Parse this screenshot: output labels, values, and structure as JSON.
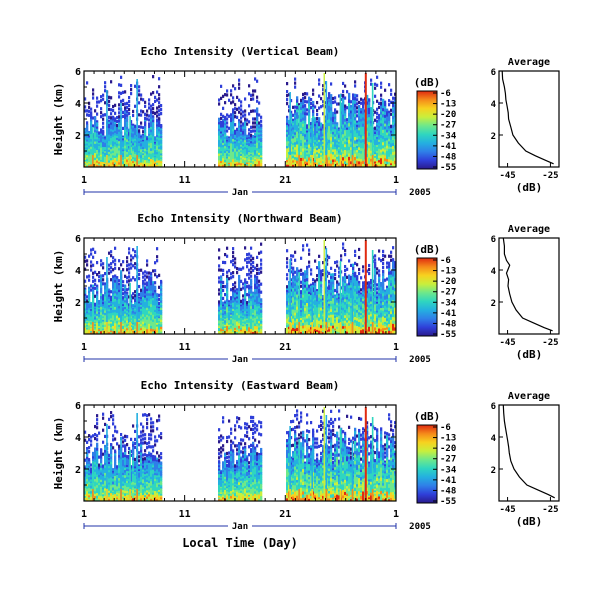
{
  "chart_data": [
    {
      "type": "heatmap",
      "title": "Echo Intensity (Vertical Beam)",
      "ylabel": "Height (km)",
      "ylim": [
        0,
        6
      ],
      "y_ticks": [
        "2",
        "4",
        "6"
      ],
      "x_ticks": [
        "1",
        "11",
        "21",
        "1"
      ],
      "period_label": "Jan",
      "year_label": "2005",
      "colorbar": {
        "unit": "(dB)",
        "ticks": [
          "-6",
          "-13",
          "-20",
          "-27",
          "-34",
          "-41",
          "-48",
          "-55"
        ]
      },
      "average": {
        "title": "Average",
        "xlabel": "(dB)",
        "x_ticks": [
          "-45",
          "-25"
        ],
        "y_ticks": [
          "2",
          "4",
          "6"
        ],
        "xlim": [
          -49,
          -21
        ],
        "ylim": [
          0,
          6
        ],
        "profile": [
          [
            -47.5,
            6.0
          ],
          [
            -47.3,
            5.5
          ],
          [
            -46.5,
            5.0
          ],
          [
            -46.0,
            4.6
          ],
          [
            -45.8,
            4.2
          ],
          [
            -45.2,
            3.8
          ],
          [
            -44.7,
            3.4
          ],
          [
            -44.5,
            3.0
          ],
          [
            -43.5,
            2.5
          ],
          [
            -42.5,
            2.0
          ],
          [
            -40.0,
            1.5
          ],
          [
            -36.5,
            1.0
          ],
          [
            -32.0,
            0.7
          ],
          [
            -27.0,
            0.4
          ],
          [
            -23.5,
            0.2
          ]
        ]
      }
    },
    {
      "type": "heatmap",
      "title": "Echo Intensity (Northward Beam)",
      "ylabel": "Height (km)",
      "ylim": [
        0,
        6
      ],
      "y_ticks": [
        "2",
        "4",
        "6"
      ],
      "x_ticks": [
        "1",
        "11",
        "21",
        "1"
      ],
      "period_label": "Jan",
      "year_label": "2005",
      "colorbar": {
        "unit": "(dB)",
        "ticks": [
          "-6",
          "-13",
          "-20",
          "-27",
          "-34",
          "-41",
          "-48",
          "-55"
        ]
      },
      "average": {
        "title": "Average",
        "xlabel": "(dB)",
        "x_ticks": [
          "-45",
          "-25"
        ],
        "y_ticks": [
          "2",
          "4",
          "6"
        ],
        "xlim": [
          -49,
          -21
        ],
        "ylim": [
          0,
          6
        ],
        "profile": [
          [
            -47.0,
            6.0
          ],
          [
            -46.5,
            5.5
          ],
          [
            -46.5,
            5.0
          ],
          [
            -45.5,
            4.6
          ],
          [
            -44.0,
            4.3
          ],
          [
            -45.5,
            3.8
          ],
          [
            -44.5,
            3.4
          ],
          [
            -44.8,
            3.0
          ],
          [
            -44.0,
            2.5
          ],
          [
            -43.0,
            2.0
          ],
          [
            -41.0,
            1.5
          ],
          [
            -38.0,
            1.0
          ],
          [
            -33.0,
            0.7
          ],
          [
            -28.0,
            0.4
          ],
          [
            -24.0,
            0.2
          ]
        ]
      }
    },
    {
      "type": "heatmap",
      "title": "Echo Intensity (Eastward Beam)",
      "ylabel": "Height (km)",
      "ylim": [
        0,
        6
      ],
      "y_ticks": [
        "2",
        "4",
        "6"
      ],
      "x_ticks": [
        "1",
        "11",
        "21",
        "1"
      ],
      "period_label": "Jan",
      "year_label": "2005",
      "xlabel": "Local Time (Day)",
      "colorbar": {
        "unit": "(dB)",
        "ticks": [
          "-6",
          "-13",
          "-20",
          "-27",
          "-34",
          "-41",
          "-48",
          "-55"
        ]
      },
      "average": {
        "title": "Average",
        "xlabel": "(dB)",
        "x_ticks": [
          "-45",
          "-25"
        ],
        "y_ticks": [
          "2",
          "4",
          "6"
        ],
        "xlim": [
          -49,
          -21
        ],
        "ylim": [
          0,
          6
        ],
        "profile": [
          [
            -47.0,
            6.0
          ],
          [
            -46.8,
            5.5
          ],
          [
            -46.5,
            5.0
          ],
          [
            -46.0,
            4.6
          ],
          [
            -45.5,
            4.2
          ],
          [
            -45.0,
            3.8
          ],
          [
            -44.5,
            3.4
          ],
          [
            -44.2,
            3.0
          ],
          [
            -43.5,
            2.5
          ],
          [
            -42.0,
            2.0
          ],
          [
            -39.5,
            1.5
          ],
          [
            -36.0,
            1.0
          ],
          [
            -31.0,
            0.7
          ],
          [
            -26.0,
            0.4
          ],
          [
            -23.0,
            0.2
          ]
        ]
      }
    }
  ],
  "colors": {
    "background": "#ffffff",
    "axis": "#000000",
    "colormap": [
      "#2a1a8c",
      "#2f3fd9",
      "#2f7fe8",
      "#24b0e0",
      "#2fd6c0",
      "#6ee88a",
      "#c9ef3c",
      "#f7d21f",
      "#f58a1a",
      "#e02a10"
    ]
  }
}
